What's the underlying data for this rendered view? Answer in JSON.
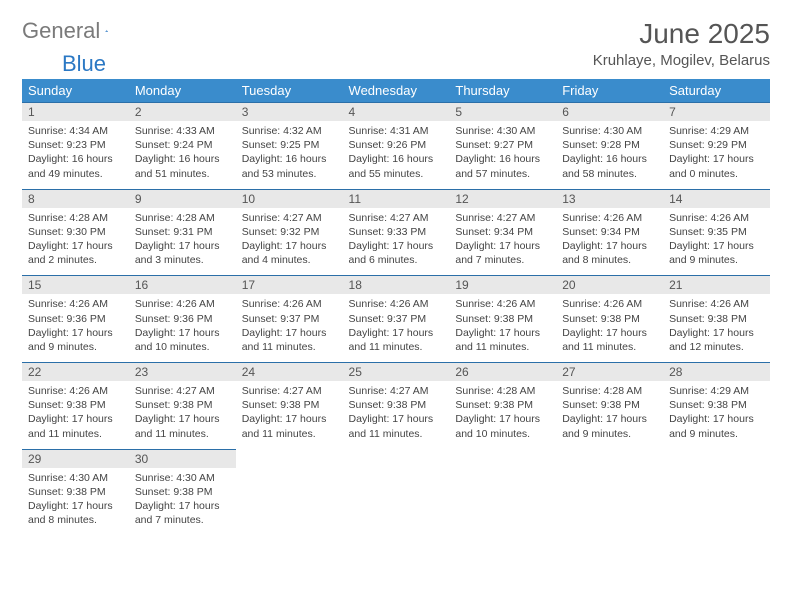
{
  "logo": {
    "grey": "General",
    "blue": "Blue"
  },
  "title": "June 2025",
  "location": "Kruhlaye, Mogilev, Belarus",
  "colors": {
    "header_bg": "#3a8ccc",
    "header_fg": "#ffffff",
    "daynum_bg": "#e8e8e8",
    "daynum_border": "#2b6fa8",
    "logo_grey": "#7a7a7a",
    "logo_blue": "#2b78c4"
  },
  "fonts": {
    "title_pt": 28,
    "location_pt": 15,
    "dayhead_pt": 13,
    "daynum_pt": 12,
    "body_pt": 10.5
  },
  "day_headers": [
    "Sunday",
    "Monday",
    "Tuesday",
    "Wednesday",
    "Thursday",
    "Friday",
    "Saturday"
  ],
  "weeks": [
    [
      {
        "n": "1",
        "sr": "4:34 AM",
        "ss": "9:23 PM",
        "dl": "16 hours and 49 minutes."
      },
      {
        "n": "2",
        "sr": "4:33 AM",
        "ss": "9:24 PM",
        "dl": "16 hours and 51 minutes."
      },
      {
        "n": "3",
        "sr": "4:32 AM",
        "ss": "9:25 PM",
        "dl": "16 hours and 53 minutes."
      },
      {
        "n": "4",
        "sr": "4:31 AM",
        "ss": "9:26 PM",
        "dl": "16 hours and 55 minutes."
      },
      {
        "n": "5",
        "sr": "4:30 AM",
        "ss": "9:27 PM",
        "dl": "16 hours and 57 minutes."
      },
      {
        "n": "6",
        "sr": "4:30 AM",
        "ss": "9:28 PM",
        "dl": "16 hours and 58 minutes."
      },
      {
        "n": "7",
        "sr": "4:29 AM",
        "ss": "9:29 PM",
        "dl": "17 hours and 0 minutes."
      }
    ],
    [
      {
        "n": "8",
        "sr": "4:28 AM",
        "ss": "9:30 PM",
        "dl": "17 hours and 2 minutes."
      },
      {
        "n": "9",
        "sr": "4:28 AM",
        "ss": "9:31 PM",
        "dl": "17 hours and 3 minutes."
      },
      {
        "n": "10",
        "sr": "4:27 AM",
        "ss": "9:32 PM",
        "dl": "17 hours and 4 minutes."
      },
      {
        "n": "11",
        "sr": "4:27 AM",
        "ss": "9:33 PM",
        "dl": "17 hours and 6 minutes."
      },
      {
        "n": "12",
        "sr": "4:27 AM",
        "ss": "9:34 PM",
        "dl": "17 hours and 7 minutes."
      },
      {
        "n": "13",
        "sr": "4:26 AM",
        "ss": "9:34 PM",
        "dl": "17 hours and 8 minutes."
      },
      {
        "n": "14",
        "sr": "4:26 AM",
        "ss": "9:35 PM",
        "dl": "17 hours and 9 minutes."
      }
    ],
    [
      {
        "n": "15",
        "sr": "4:26 AM",
        "ss": "9:36 PM",
        "dl": "17 hours and 9 minutes."
      },
      {
        "n": "16",
        "sr": "4:26 AM",
        "ss": "9:36 PM",
        "dl": "17 hours and 10 minutes."
      },
      {
        "n": "17",
        "sr": "4:26 AM",
        "ss": "9:37 PM",
        "dl": "17 hours and 11 minutes."
      },
      {
        "n": "18",
        "sr": "4:26 AM",
        "ss": "9:37 PM",
        "dl": "17 hours and 11 minutes."
      },
      {
        "n": "19",
        "sr": "4:26 AM",
        "ss": "9:38 PM",
        "dl": "17 hours and 11 minutes."
      },
      {
        "n": "20",
        "sr": "4:26 AM",
        "ss": "9:38 PM",
        "dl": "17 hours and 11 minutes."
      },
      {
        "n": "21",
        "sr": "4:26 AM",
        "ss": "9:38 PM",
        "dl": "17 hours and 12 minutes."
      }
    ],
    [
      {
        "n": "22",
        "sr": "4:26 AM",
        "ss": "9:38 PM",
        "dl": "17 hours and 11 minutes."
      },
      {
        "n": "23",
        "sr": "4:27 AM",
        "ss": "9:38 PM",
        "dl": "17 hours and 11 minutes."
      },
      {
        "n": "24",
        "sr": "4:27 AM",
        "ss": "9:38 PM",
        "dl": "17 hours and 11 minutes."
      },
      {
        "n": "25",
        "sr": "4:27 AM",
        "ss": "9:38 PM",
        "dl": "17 hours and 11 minutes."
      },
      {
        "n": "26",
        "sr": "4:28 AM",
        "ss": "9:38 PM",
        "dl": "17 hours and 10 minutes."
      },
      {
        "n": "27",
        "sr": "4:28 AM",
        "ss": "9:38 PM",
        "dl": "17 hours and 9 minutes."
      },
      {
        "n": "28",
        "sr": "4:29 AM",
        "ss": "9:38 PM",
        "dl": "17 hours and 9 minutes."
      }
    ],
    [
      {
        "n": "29",
        "sr": "4:30 AM",
        "ss": "9:38 PM",
        "dl": "17 hours and 8 minutes."
      },
      {
        "n": "30",
        "sr": "4:30 AM",
        "ss": "9:38 PM",
        "dl": "17 hours and 7 minutes."
      },
      null,
      null,
      null,
      null,
      null
    ]
  ],
  "labels": {
    "sunrise": "Sunrise: ",
    "sunset": "Sunset: ",
    "daylight": "Daylight: "
  }
}
